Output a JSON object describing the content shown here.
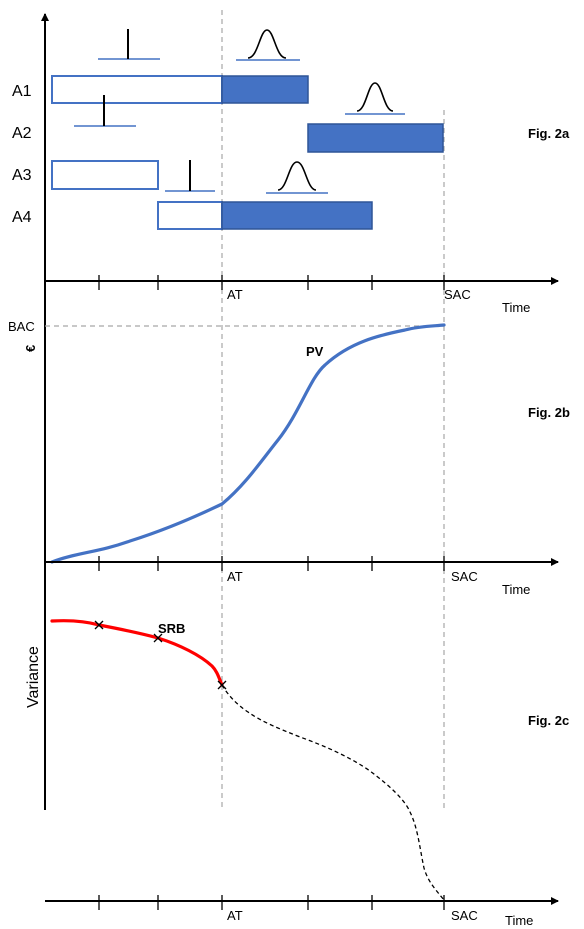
{
  "colors": {
    "bar_blue": "#4472C4",
    "bar_outline": "#2F5597",
    "pv_line": "#4472C4",
    "srb_line": "#FF0000",
    "dashed": "#A6A6A6"
  },
  "fig_a": {
    "label": "Fig. 2a",
    "activities": [
      "A1",
      "A2",
      "A3",
      "A4"
    ],
    "at_label": "AT",
    "sac_label": "SAC",
    "time_label": "Time"
  },
  "fig_b": {
    "label": "Fig. 2b",
    "y_symbol": "€",
    "bac_label": "BAC",
    "curve_label": "PV",
    "at_label": "AT",
    "sac_label": "SAC",
    "time_label": "Time"
  },
  "fig_c": {
    "label": "Fig. 2c",
    "y_label": "Variance",
    "curve_label": "SRB",
    "at_label": "AT",
    "sac_label": "SAC",
    "time_label": "Time"
  }
}
